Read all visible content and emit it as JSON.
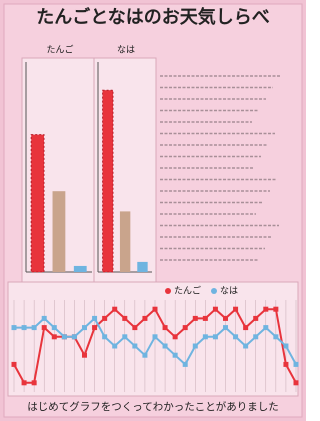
{
  "title": "たんごとなはのお天気しらべ",
  "footer": "はじめてグラフをつくってわかったことがありました",
  "chart_data": [
    {
      "type": "bar",
      "title": "たんご",
      "categories": [
        null,
        null,
        null
      ],
      "values": [
        68,
        40,
        3
      ],
      "colors": [
        "#e8343c",
        "#c9a48c",
        "#6fb4e0"
      ],
      "ylim": [
        0,
        100
      ]
    },
    {
      "type": "bar",
      "title": "なは",
      "categories": [
        null,
        null,
        null
      ],
      "values": [
        90,
        30,
        5
      ],
      "colors": [
        "#e8343c",
        "#c9a48c",
        "#6fb4e0"
      ],
      "ylim": [
        0,
        100
      ]
    },
    {
      "type": "line",
      "ylim": [
        0,
        10
      ],
      "series": [
        {
          "name": "たんご",
          "color": "#e8343c",
          "values": [
            3,
            1,
            1,
            7,
            6,
            6,
            6,
            4,
            7,
            8,
            9,
            8,
            7,
            8,
            9,
            7,
            6,
            7,
            8,
            8,
            9,
            8,
            9,
            7,
            8,
            9,
            9,
            3,
            1
          ]
        },
        {
          "name": "なは",
          "color": "#6fb4e0",
          "values": [
            7,
            7,
            7,
            8,
            7,
            6,
            6,
            7,
            8,
            6,
            5,
            6,
            5,
            4,
            6,
            5,
            4,
            3,
            5,
            6,
            6,
            7,
            6,
            5,
            6,
            7,
            6,
            5,
            3
          ]
        }
      ]
    }
  ]
}
